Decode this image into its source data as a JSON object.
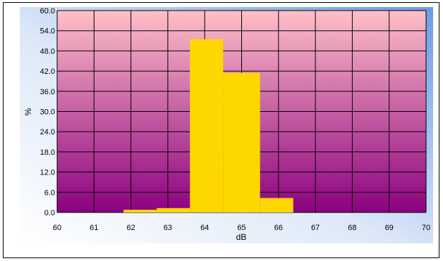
{
  "chart_data": {
    "type": "bar",
    "title": "",
    "xlabel": "dB",
    "ylabel": "%",
    "xlim": [
      60,
      70
    ],
    "ylim": [
      0,
      60
    ],
    "x_ticks": [
      "60",
      "61",
      "62",
      "63",
      "64",
      "65",
      "66",
      "67",
      "68",
      "69",
      "70"
    ],
    "y_ticks": [
      "0.0",
      "6.0",
      "12.0",
      "18.0",
      "24.0",
      "30.0",
      "36.0",
      "42.0",
      "48.0",
      "54.0",
      "60.0"
    ],
    "grid": true,
    "legend": "none",
    "bins": [
      {
        "x0": 61.8,
        "x1": 62.7,
        "value": 0.8
      },
      {
        "x0": 62.7,
        "x1": 63.6,
        "value": 1.3
      },
      {
        "x0": 63.6,
        "x1": 64.5,
        "value": 51.5
      },
      {
        "x0": 64.5,
        "x1": 65.5,
        "value": 41.5
      },
      {
        "x0": 65.5,
        "x1": 66.4,
        "value": 4.3
      }
    ],
    "colors": {
      "bar": "#FFD700",
      "plot_top": "#FFC0C8",
      "plot_bottom": "#8B007F",
      "panel_top": "#6A9BE8",
      "panel_bottom": "#FFFFFF",
      "grid": "#000000"
    }
  }
}
